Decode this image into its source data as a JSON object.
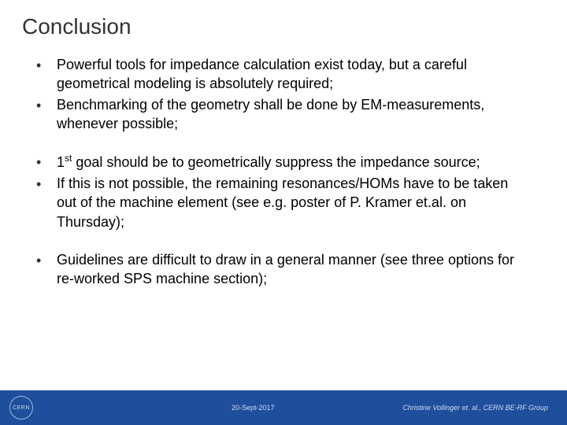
{
  "title": "Conclusion",
  "bullets": {
    "b1": "Powerful tools for impedance calculation exist today, but a careful geometrical modeling is absolutely required;",
    "b2": "Benchmarking of the geometry shall be done by EM-measurements, whenever possible;",
    "b3_pre": "1",
    "b3_sup": "st",
    "b3_post": " goal should be to geometrically suppress the impedance source;",
    "b4": "If this is not possible, the remaining resonances/HOMs have to be taken out of the machine element (see e.g. poster of P. Kramer et.al. on Thursday);",
    "b5": "Guidelines are difficult to draw in a general manner (see three options for re-worked SPS machine section);"
  },
  "footer": {
    "logo_text": "CERN",
    "date": "20-Sept-2017",
    "author": "Christine Vollinger et. al., CERN BE-RF Group"
  },
  "colors": {
    "footer_bg": "#1f4e9c",
    "footer_text": "#d0ddf0",
    "title_color": "#333333",
    "body_text": "#000000",
    "background": "#ffffff"
  },
  "typography": {
    "title_fontsize": 28,
    "body_fontsize": 18,
    "footer_fontsize": 9
  }
}
